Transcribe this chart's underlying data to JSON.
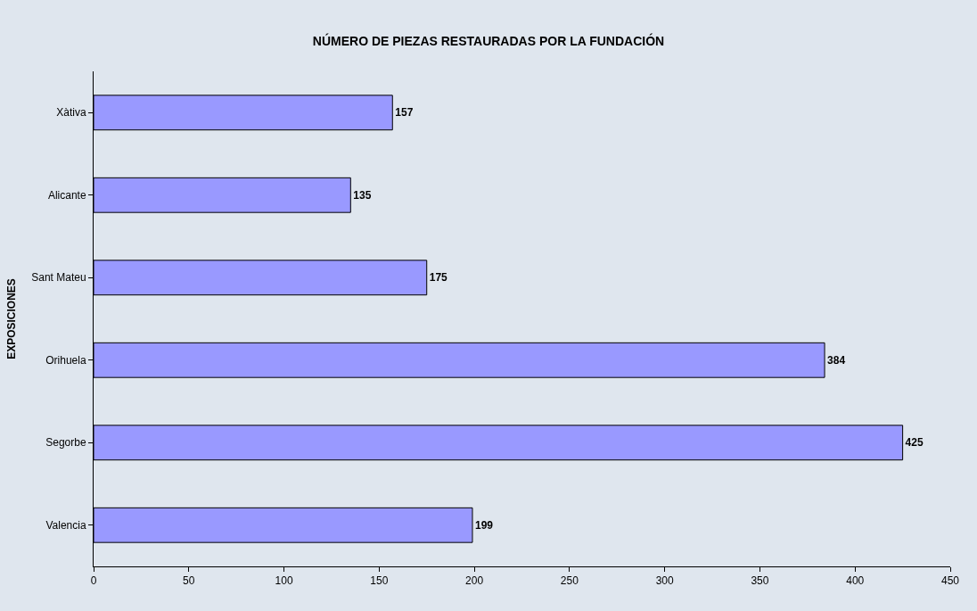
{
  "chart_data": {
    "type": "bar",
    "orientation": "horizontal",
    "title": "NÚMERO DE PIEZAS RESTAURADAS POR LA FUNDACIÓN",
    "ylabel": "EXPOSICIONES",
    "categories": [
      "Xàtiva",
      "Alicante",
      "Sant Mateu",
      "Orihuela",
      "Segorbe",
      "Valencia"
    ],
    "values": [
      157,
      135,
      175,
      384,
      425,
      199
    ],
    "color": "#9999ff",
    "xlim": [
      0,
      450
    ],
    "xticks": [
      0,
      50,
      100,
      150,
      200,
      250,
      300,
      350,
      400,
      450
    ],
    "data_labels": true,
    "grid": false
  }
}
